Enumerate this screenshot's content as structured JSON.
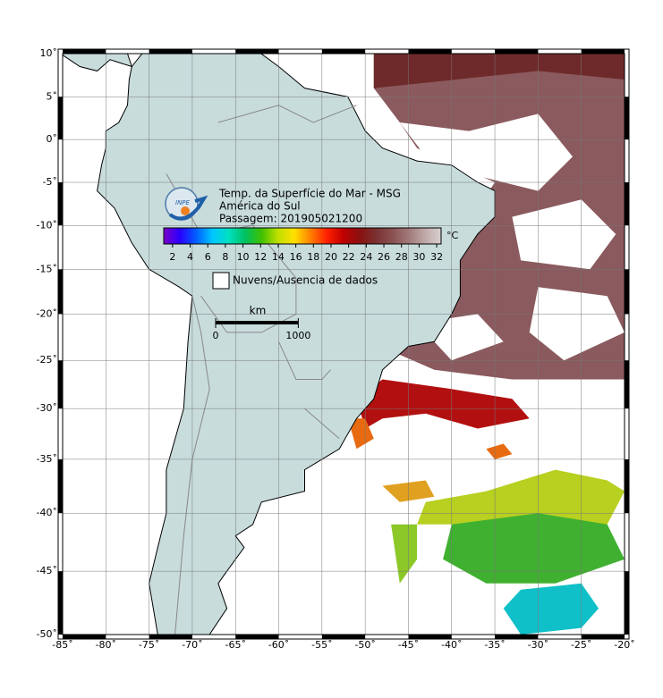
{
  "map": {
    "xlim": [
      -85,
      -20
    ],
    "ylim": [
      -50,
      10
    ],
    "grid": true,
    "xticks": [
      {
        "value": -85,
        "label": "-85˚"
      },
      {
        "value": -80,
        "label": "-80˚"
      },
      {
        "value": -75,
        "label": "-75˚"
      },
      {
        "value": -70,
        "label": "-70˚"
      },
      {
        "value": -65,
        "label": "-65˚"
      },
      {
        "value": -60,
        "label": "-60˚"
      },
      {
        "value": -55,
        "label": "-55˚"
      },
      {
        "value": -50,
        "label": "-50˚"
      },
      {
        "value": -45,
        "label": "-45˚"
      },
      {
        "value": -40,
        "label": "-40˚"
      },
      {
        "value": -35,
        "label": "-35˚"
      },
      {
        "value": -30,
        "label": "-30˚"
      },
      {
        "value": -25,
        "label": "-25˚"
      },
      {
        "value": -20,
        "label": "-20˚"
      }
    ],
    "yticks": [
      {
        "value": 10,
        "label": "10˚"
      },
      {
        "value": 5,
        "label": "5˚"
      },
      {
        "value": 0,
        "label": "0˚"
      },
      {
        "value": -5,
        "label": "-5˚"
      },
      {
        "value": -10,
        "label": "-10˚"
      },
      {
        "value": -15,
        "label": "-15˚"
      },
      {
        "value": -20,
        "label": "-20˚"
      },
      {
        "value": -25,
        "label": "-25˚"
      },
      {
        "value": -30,
        "label": "-30˚"
      },
      {
        "value": -35,
        "label": "-35˚"
      },
      {
        "value": -40,
        "label": "-40˚"
      },
      {
        "value": -45,
        "label": "-45˚"
      },
      {
        "value": -50,
        "label": "-50˚"
      }
    ]
  },
  "legend": {
    "logo_text": "INPE",
    "title_lines": [
      "Temp. da Superfície do Mar - MSG",
      "América do Sul",
      "Passagem: 201905021200"
    ],
    "colorbar": {
      "unit": "°C",
      "clim": [
        1,
        32.5
      ],
      "ticks": [
        2,
        4,
        6,
        8,
        10,
        12,
        14,
        16,
        18,
        20,
        22,
        24,
        26,
        28,
        30,
        32
      ],
      "colors": [
        "#7a00c8",
        "#2a00ff",
        "#0060ff",
        "#00c8ff",
        "#00e0c0",
        "#00c060",
        "#40c000",
        "#c0e000",
        "#ffe000",
        "#ff8000",
        "#ff2000",
        "#c00000",
        "#8a1010",
        "#7a3030",
        "#8a5050",
        "#a07878",
        "#c0a8a8",
        "#d8d0d0"
      ]
    },
    "no_data_label": "Nuvens/Ausencia de dados",
    "scale_bar": {
      "unit": "km",
      "ticks": [
        0,
        1000
      ]
    }
  }
}
